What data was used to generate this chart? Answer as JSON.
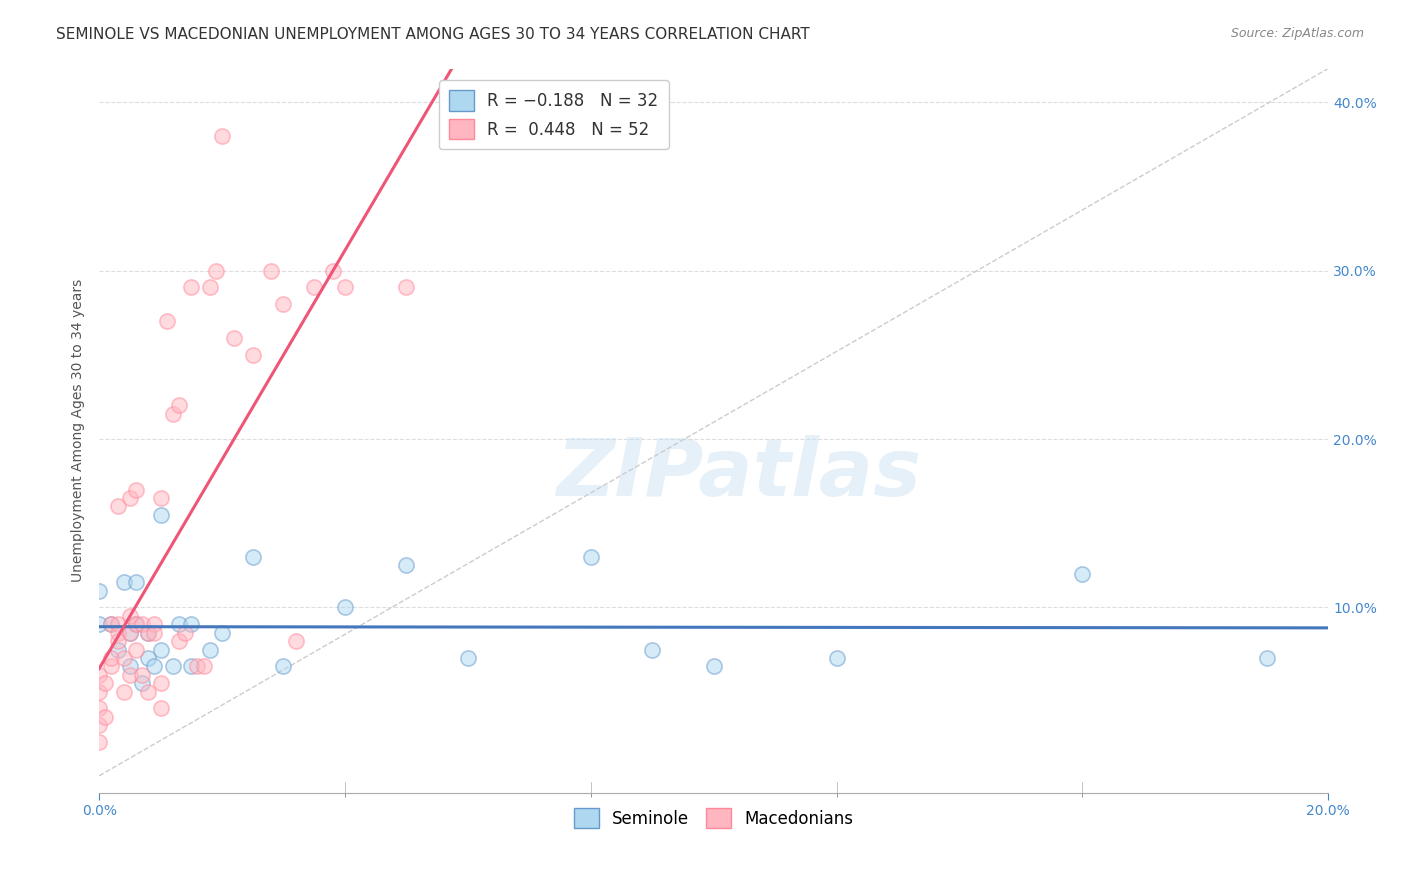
{
  "title": "SEMINOLE VS MACEDONIAN UNEMPLOYMENT AMONG AGES 30 TO 34 YEARS CORRELATION CHART",
  "source": "Source: ZipAtlas.com",
  "ylabel": "Unemployment Among Ages 30 to 34 years",
  "xlim": [
    0.0,
    0.2
  ],
  "ylim": [
    -0.01,
    0.42
  ],
  "xtick_major": [
    0.0,
    0.2
  ],
  "xtick_minor": [
    0.04,
    0.08,
    0.12,
    0.16
  ],
  "yticks": [
    0.1,
    0.2,
    0.3,
    0.4
  ],
  "seminole_color": "#ADD8F0",
  "macedonian_color": "#FFB6C1",
  "seminole_edge": "#6699CC",
  "macedonian_edge": "#FF8899",
  "seminole_line_color": "#4477BB",
  "macedonian_line_color": "#EE5577",
  "diag_line_color": "#CCCCCC",
  "grid_color": "#DDDDDD",
  "watermark": "ZIPatlas",
  "title_fontsize": 11,
  "axis_label_fontsize": 10,
  "tick_fontsize": 10,
  "legend_fontsize": 12,
  "source_fontsize": 9,
  "marker_size": 120,
  "marker_alpha": 0.5,
  "line_width": 2.2,
  "seminole_x": [
    0.0,
    0.0,
    0.002,
    0.003,
    0.004,
    0.005,
    0.005,
    0.006,
    0.006,
    0.007,
    0.008,
    0.008,
    0.009,
    0.01,
    0.01,
    0.012,
    0.013,
    0.015,
    0.015,
    0.018,
    0.02,
    0.025,
    0.03,
    0.04,
    0.05,
    0.06,
    0.08,
    0.09,
    0.1,
    0.12,
    0.16,
    0.19
  ],
  "seminole_y": [
    0.09,
    0.11,
    0.09,
    0.075,
    0.115,
    0.085,
    0.065,
    0.09,
    0.115,
    0.055,
    0.07,
    0.085,
    0.065,
    0.155,
    0.075,
    0.065,
    0.09,
    0.065,
    0.09,
    0.075,
    0.085,
    0.13,
    0.065,
    0.1,
    0.125,
    0.07,
    0.13,
    0.075,
    0.065,
    0.07,
    0.12,
    0.07
  ],
  "macedonian_x": [
    0.0,
    0.0,
    0.0,
    0.0,
    0.0,
    0.001,
    0.001,
    0.002,
    0.002,
    0.002,
    0.003,
    0.003,
    0.003,
    0.003,
    0.004,
    0.004,
    0.005,
    0.005,
    0.005,
    0.005,
    0.006,
    0.006,
    0.006,
    0.007,
    0.007,
    0.008,
    0.008,
    0.009,
    0.009,
    0.01,
    0.01,
    0.01,
    0.011,
    0.012,
    0.013,
    0.013,
    0.014,
    0.015,
    0.016,
    0.017,
    0.018,
    0.019,
    0.02,
    0.022,
    0.025,
    0.028,
    0.03,
    0.032,
    0.035,
    0.038,
    0.04,
    0.05
  ],
  "macedonian_y": [
    0.04,
    0.05,
    0.03,
    0.02,
    0.06,
    0.055,
    0.035,
    0.065,
    0.09,
    0.07,
    0.09,
    0.085,
    0.16,
    0.08,
    0.05,
    0.07,
    0.095,
    0.085,
    0.06,
    0.165,
    0.17,
    0.075,
    0.09,
    0.06,
    0.09,
    0.05,
    0.085,
    0.09,
    0.085,
    0.055,
    0.04,
    0.165,
    0.27,
    0.215,
    0.22,
    0.08,
    0.085,
    0.29,
    0.065,
    0.065,
    0.29,
    0.3,
    0.38,
    0.26,
    0.25,
    0.3,
    0.28,
    0.08,
    0.29,
    0.3,
    0.29,
    0.29
  ],
  "seminole_line_xrange": [
    0.0,
    0.2
  ],
  "macedonian_line_xrange": [
    0.0,
    0.065
  ]
}
